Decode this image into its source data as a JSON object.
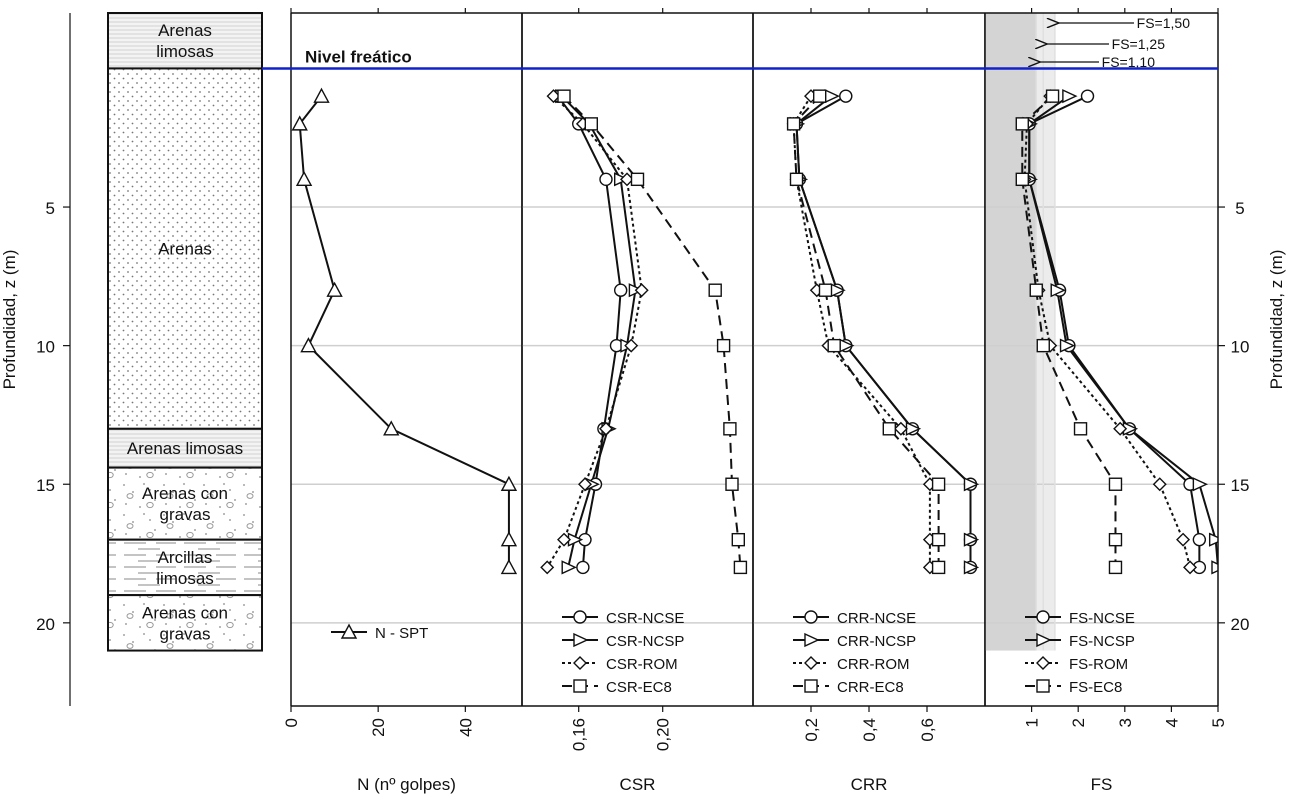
{
  "chart_data": [
    {
      "type": "table",
      "subtype": "stratigraphic-column",
      "y_label": "Profundidad, z (m)",
      "ylim": [
        23,
        -2.0
      ],
      "y_ticks": [
        5,
        10,
        15,
        20
      ],
      "layers": [
        {
          "top": -2.0,
          "bottom": 0,
          "label": "Arenas\nlimosas",
          "pattern": "lines"
        },
        {
          "top": 0,
          "bottom": 13,
          "label": "Arenas",
          "pattern": "dots"
        },
        {
          "top": 13,
          "bottom": 14.4,
          "label": "Arenas limosas",
          "pattern": "lines"
        },
        {
          "top": 14.4,
          "bottom": 17,
          "label": "Arenas con\ngravas",
          "pattern": "gravel"
        },
        {
          "top": 17,
          "bottom": 19.0,
          "label": "Arcillas\nlimosas",
          "pattern": "dashes"
        },
        {
          "top": 19.0,
          "bottom": 21.0,
          "label": "Arenas con\ngravas",
          "pattern": "gravel"
        }
      ],
      "water_table": {
        "depth": 0,
        "label": "Nivel freático",
        "color": "#1122cc"
      }
    },
    {
      "type": "line",
      "xlabel": "N (nº golpes)",
      "xlim": [
        0,
        53
      ],
      "x_ticks": [
        0,
        20,
        40
      ],
      "series": [
        {
          "name": "N - SPT",
          "marker": "triangle",
          "dash": "solid",
          "x": [
            7,
            2,
            3,
            10,
            4,
            23,
            50,
            50,
            50
          ],
          "y": [
            1,
            2,
            4,
            8,
            10,
            13,
            15,
            17,
            18
          ]
        }
      ]
    },
    {
      "type": "line",
      "xlabel": "CSR",
      "xlim": [
        0.133,
        0.243
      ],
      "x_ticks": [
        0.16,
        0.2
      ],
      "x_tick_labels": [
        "0,16",
        "0,20"
      ],
      "series": [
        {
          "name": "CSR-NCSE",
          "marker": "circle",
          "dash": "solid",
          "x": [
            0.15,
            0.16,
            0.173,
            0.18,
            0.178,
            0.172,
            0.168,
            0.163,
            0.162
          ],
          "y": [
            1,
            2,
            4,
            8,
            10,
            13,
            15,
            17,
            18
          ]
        },
        {
          "name": "CSR-NCSP",
          "marker": "triangle-right",
          "dash": "solid",
          "x": [
            0.152,
            0.165,
            0.18,
            0.187,
            0.183,
            0.174,
            0.166,
            0.158,
            0.155
          ],
          "y": [
            1,
            2,
            4,
            8,
            10,
            13,
            15,
            17,
            18
          ]
        },
        {
          "name": "CSR-ROM",
          "marker": "diamond",
          "dash": "dotted",
          "x": [
            0.148,
            0.162,
            0.183,
            0.19,
            0.185,
            0.173,
            0.163,
            0.153,
            0.145
          ],
          "y": [
            1,
            2,
            4,
            8,
            10,
            13,
            15,
            17,
            18
          ]
        },
        {
          "name": "CSR-EC8",
          "marker": "square",
          "dash": "dashed",
          "x": [
            0.153,
            0.166,
            0.188,
            0.225,
            0.229,
            0.232,
            0.233,
            0.236,
            0.237
          ],
          "y": [
            1,
            2,
            4,
            8,
            10,
            13,
            15,
            17,
            18
          ]
        }
      ]
    },
    {
      "type": "line",
      "xlabel": "CRR",
      "xlim": [
        0.0,
        0.8
      ],
      "x_ticks": [
        0.2,
        0.4,
        0.6
      ],
      "x_tick_labels": [
        "0,2",
        "0,4",
        "0,6"
      ],
      "series": [
        {
          "name": "CRR-NCSE",
          "marker": "circle",
          "dash": "solid",
          "x": [
            0.32,
            0.15,
            0.16,
            0.29,
            0.32,
            0.55,
            0.75,
            0.75,
            0.75
          ],
          "y": [
            1,
            2,
            4,
            8,
            10,
            13,
            15,
            17,
            18
          ]
        },
        {
          "name": "CRR-NCSP",
          "marker": "triangle-right",
          "dash": "solid",
          "x": [
            0.27,
            0.15,
            0.16,
            0.29,
            0.32,
            0.55,
            0.75,
            0.75,
            0.75
          ],
          "y": [
            1,
            2,
            4,
            8,
            10,
            13,
            15,
            17,
            18
          ]
        },
        {
          "name": "CRR-ROM",
          "marker": "diamond",
          "dash": "dotted",
          "x": [
            0.2,
            0.14,
            0.15,
            0.22,
            0.26,
            0.51,
            0.61,
            0.61,
            0.61
          ],
          "y": [
            1,
            2,
            4,
            8,
            10,
            13,
            15,
            17,
            18
          ]
        },
        {
          "name": "CRR-EC8",
          "marker": "square",
          "dash": "dashed",
          "x": [
            0.23,
            0.14,
            0.15,
            0.25,
            0.28,
            0.47,
            0.64,
            0.64,
            0.64
          ],
          "y": [
            1,
            2,
            4,
            8,
            10,
            13,
            15,
            17,
            18
          ]
        }
      ]
    },
    {
      "type": "line",
      "xlabel": "FS",
      "xlim": [
        0,
        5
      ],
      "x_ticks": [
        1,
        2,
        3,
        4,
        5
      ],
      "x_tick_labels": [
        "1",
        "2",
        "3",
        "4",
        "5"
      ],
      "shaded_region": {
        "x": [
          0,
          1.1
        ],
        "color": "#d4d4d4"
      },
      "reference_lines": [
        {
          "x": 1.5,
          "label": "FS=1,50"
        },
        {
          "x": 1.25,
          "label": "FS=1,25"
        },
        {
          "x": 1.1,
          "label": "FS=1,10"
        }
      ],
      "series": [
        {
          "name": "FS-NCSE",
          "marker": "circle",
          "dash": "solid",
          "x": [
            2.2,
            0.95,
            0.95,
            1.6,
            1.8,
            3.1,
            4.4,
            4.6,
            4.6
          ],
          "y": [
            1,
            2,
            4,
            8,
            10,
            13,
            15,
            17,
            18
          ]
        },
        {
          "name": "FS-NCSP",
          "marker": "triangle-right",
          "dash": "solid",
          "x": [
            1.8,
            0.95,
            0.95,
            1.55,
            1.75,
            3.1,
            4.6,
            4.95,
            5.0
          ],
          "y": [
            1,
            2,
            4,
            8,
            10,
            13,
            15,
            17,
            18
          ]
        },
        {
          "name": "FS-ROM",
          "marker": "diamond",
          "dash": "dotted",
          "x": [
            1.4,
            0.9,
            0.85,
            1.15,
            1.4,
            2.9,
            3.75,
            4.25,
            4.4
          ],
          "y": [
            1,
            2,
            4,
            8,
            10,
            13,
            15,
            17,
            18
          ]
        },
        {
          "name": "FS-EC8",
          "marker": "square",
          "dash": "dashed",
          "x": [
            1.45,
            0.8,
            0.8,
            1.1,
            1.25,
            2.05,
            2.8,
            2.8,
            2.8
          ],
          "y": [
            1,
            2,
            4,
            8,
            10,
            13,
            15,
            17,
            18
          ]
        }
      ]
    }
  ]
}
